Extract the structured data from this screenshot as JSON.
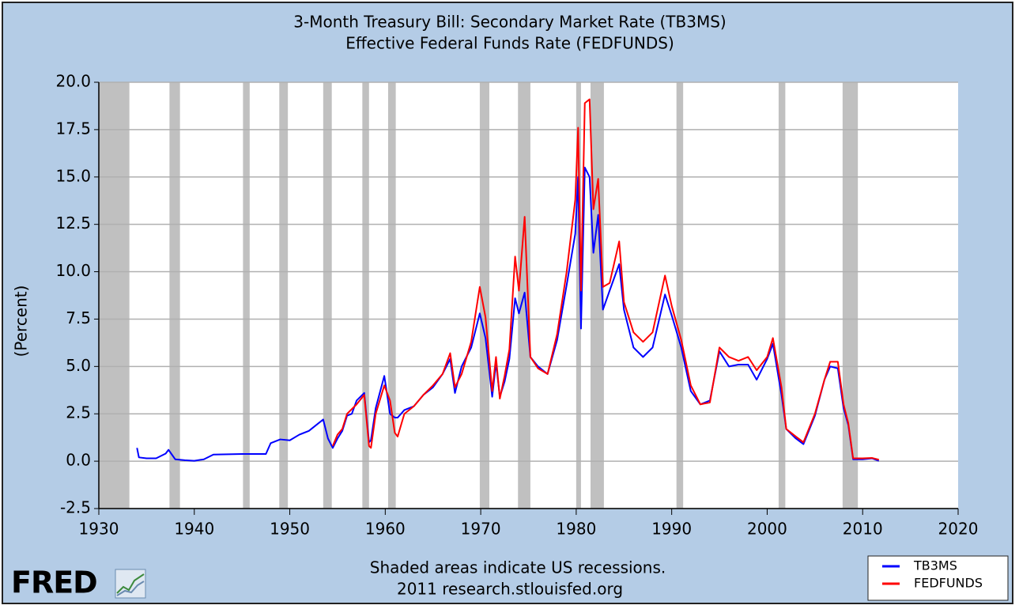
{
  "chart_data": {
    "type": "line",
    "title": "3-Month Treasury Bill: Secondary Market Rate (TB3MS)",
    "subtitle": "Effective Federal Funds Rate (FEDFUNDS)",
    "y_label": "(Percent)",
    "note": "Shaded areas indicate US recessions.",
    "source": "2011 research.stlouisfed.org",
    "logo": "FRED",
    "xlim": [
      1930,
      2020
    ],
    "xticks": [
      1930,
      1940,
      1950,
      1960,
      1970,
      1980,
      1990,
      2000,
      2010,
      2020
    ],
    "ylim": [
      -2.5,
      20
    ],
    "yticks": [
      -2.5,
      {
        "value": 0,
        "label": "0.0"
      },
      2.5,
      {
        "value": 5,
        "label": "5.0"
      },
      7.5,
      {
        "value": 10,
        "label": "10.0"
      },
      12.5,
      {
        "value": 15,
        "label": "15.0"
      },
      17.5,
      {
        "value": 20,
        "label": "20.0"
      }
    ],
    "grid": true,
    "legend": "bottom-right",
    "recession_color": "#c0c0c0",
    "recessions": [
      [
        1929.7,
        1933.2
      ],
      [
        1937.4,
        1938.5
      ],
      [
        1945.1,
        1945.8
      ],
      [
        1948.9,
        1949.8
      ],
      [
        1953.5,
        1954.4
      ],
      [
        1957.6,
        1958.3
      ],
      [
        1960.3,
        1961.1
      ],
      [
        1969.9,
        1970.9
      ],
      [
        1973.9,
        1975.2
      ],
      [
        1980.0,
        1980.5
      ],
      [
        1981.5,
        1982.9
      ],
      [
        1990.5,
        1991.2
      ],
      [
        2001.2,
        2001.9
      ],
      [
        2007.9,
        2009.5
      ]
    ],
    "x": [
      1934.0,
      1934.2,
      1935.0,
      1936.0,
      1937.0,
      1937.3,
      1938.0,
      1939.0,
      1940.0,
      1941.0,
      1942.0,
      1945.0,
      1947.5,
      1948.0,
      1949.0,
      1950.0,
      1951.0,
      1952.0,
      1953.0,
      1953.5,
      1954.0,
      1954.5,
      1955.0,
      1955.5,
      1956.0,
      1956.5,
      1957.0,
      1957.8,
      1958.3,
      1958.5,
      1959.0,
      1959.9,
      1960.5,
      1961.0,
      1961.3,
      1962.0,
      1963.0,
      1964.0,
      1965.0,
      1966.0,
      1966.8,
      1967.3,
      1968.0,
      1969.0,
      1969.9,
      1970.5,
      1971.2,
      1971.6,
      1972.0,
      1972.5,
      1973.0,
      1973.6,
      1974.0,
      1974.6,
      1975.2,
      1976.0,
      1977.0,
      1978.0,
      1979.0,
      1979.9,
      1980.2,
      1980.5,
      1980.9,
      1981.4,
      1981.8,
      1982.3,
      1982.8,
      1983.5,
      1984.5,
      1985.0,
      1986.0,
      1987.0,
      1988.0,
      1989.3,
      1990.0,
      1991.0,
      1992.0,
      1993.0,
      1994.0,
      1995.0,
      1996.0,
      1997.0,
      1998.0,
      1998.9,
      2000.0,
      2000.6,
      2001.5,
      2002.0,
      2003.0,
      2003.8,
      2005.0,
      2006.0,
      2006.6,
      2007.4,
      2008.0,
      2008.5,
      2009.0,
      2010.0,
      2011.0,
      2011.7
    ],
    "series": [
      {
        "name": "TB3MS",
        "color": "#0000ff",
        "values": [
          0.7,
          0.2,
          0.15,
          0.15,
          0.4,
          0.6,
          0.1,
          0.05,
          0.02,
          0.1,
          0.35,
          0.38,
          0.38,
          0.95,
          1.15,
          1.1,
          1.4,
          1.6,
          2.0,
          2.2,
          1.2,
          0.7,
          1.2,
          1.6,
          2.4,
          2.5,
          3.2,
          3.6,
          1.0,
          1.1,
          2.8,
          4.5,
          2.5,
          2.3,
          2.3,
          2.7,
          2.9,
          3.5,
          3.9,
          4.6,
          5.4,
          3.6,
          5.0,
          6.0,
          7.8,
          6.5,
          3.4,
          5.2,
          3.4,
          4.2,
          5.4,
          8.6,
          7.8,
          8.9,
          5.5,
          5.0,
          4.6,
          6.4,
          9.3,
          12.0,
          15.0,
          7.0,
          15.5,
          15.0,
          11.0,
          13.0,
          8.0,
          9.0,
          10.4,
          8.0,
          6.0,
          5.5,
          6.0,
          8.8,
          7.7,
          6.0,
          3.7,
          3.0,
          3.2,
          5.8,
          5.0,
          5.1,
          5.1,
          4.3,
          5.4,
          6.2,
          3.5,
          1.7,
          1.2,
          0.9,
          2.4,
          4.3,
          5.0,
          4.9,
          2.8,
          1.9,
          0.1,
          0.1,
          0.15,
          0.02
        ]
      },
      {
        "name": "FEDFUNDS",
        "color": "#ff0000",
        "values": [
          null,
          null,
          null,
          null,
          null,
          null,
          null,
          null,
          null,
          null,
          null,
          null,
          null,
          null,
          null,
          null,
          null,
          null,
          null,
          null,
          null,
          0.8,
          1.4,
          1.7,
          2.5,
          2.75,
          3.0,
          3.5,
          0.8,
          0.7,
          2.5,
          4.0,
          3.2,
          1.5,
          1.3,
          2.5,
          2.9,
          3.5,
          4.0,
          4.6,
          5.7,
          3.9,
          4.6,
          6.3,
          9.2,
          7.6,
          3.7,
          5.5,
          3.3,
          4.5,
          5.9,
          10.8,
          9.0,
          12.9,
          5.5,
          4.9,
          4.6,
          6.7,
          10.0,
          13.8,
          17.6,
          9.0,
          18.9,
          19.1,
          13.3,
          14.9,
          9.2,
          9.4,
          11.6,
          8.4,
          6.8,
          6.3,
          6.8,
          9.8,
          8.2,
          6.4,
          4.0,
          3.0,
          3.1,
          6.0,
          5.5,
          5.3,
          5.5,
          4.8,
          5.5,
          6.5,
          3.9,
          1.7,
          1.3,
          1.0,
          2.5,
          4.3,
          5.25,
          5.25,
          3.0,
          2.0,
          0.15,
          0.15,
          0.17,
          0.08
        ]
      }
    ]
  }
}
